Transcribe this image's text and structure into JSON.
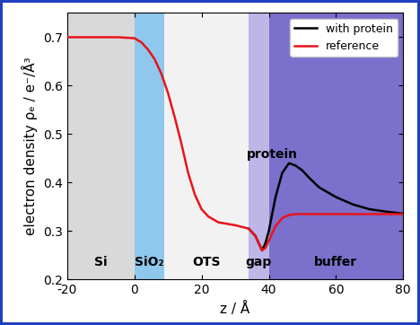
{
  "chart_data": {
    "type": "line",
    "xlabel": "z / Å",
    "ylabel": "electron density ρₑ / e⁻/Å³",
    "x": [
      -20,
      -10,
      -5,
      0,
      2,
      4,
      6,
      8,
      10,
      12,
      14,
      16,
      18,
      20,
      22,
      25,
      30,
      34,
      36,
      37,
      38,
      39,
      40,
      42,
      44,
      46,
      48,
      50,
      52,
      55,
      60,
      65,
      70,
      75,
      80
    ],
    "series": [
      {
        "name": "with protein",
        "color": "#000000",
        "values": [
          null,
          null,
          null,
          null,
          null,
          null,
          null,
          null,
          null,
          null,
          null,
          null,
          null,
          null,
          null,
          null,
          null,
          0.305,
          0.29,
          0.275,
          0.26,
          0.275,
          0.3,
          0.37,
          0.42,
          0.44,
          0.435,
          0.425,
          0.41,
          0.39,
          0.37,
          0.355,
          0.345,
          0.34,
          0.336
        ]
      },
      {
        "name": "reference",
        "color": "#e8141c",
        "values": [
          0.7,
          0.7,
          0.7,
          0.698,
          0.69,
          0.675,
          0.655,
          0.625,
          0.585,
          0.535,
          0.48,
          0.42,
          0.375,
          0.345,
          0.33,
          0.318,
          0.312,
          0.305,
          0.29,
          0.275,
          0.26,
          0.265,
          0.28,
          0.31,
          0.327,
          0.333,
          0.335,
          0.335,
          0.335,
          0.335,
          0.335,
          0.335,
          0.335,
          0.335,
          0.335
        ]
      }
    ],
    "regions": [
      {
        "label": "Si",
        "start": -20,
        "end": 0,
        "color": "#d9d9d9"
      },
      {
        "label": "SiO₂",
        "start": 0,
        "end": 9,
        "color": "#8fc8ec"
      },
      {
        "label": "OTS",
        "start": 9,
        "end": 34,
        "color": "#f2f2f2"
      },
      {
        "label": "gap",
        "start": 34,
        "end": 40,
        "color": "#bdb6e6"
      },
      {
        "label": "buffer",
        "start": 40,
        "end": 80,
        "color": "#7b70cc"
      }
    ],
    "annotations": [
      "protein"
    ],
    "xlim": [
      -20,
      80
    ],
    "ylim": [
      0.2,
      0.75
    ],
    "xticks": [
      -20,
      0,
      20,
      40,
      60,
      80
    ],
    "yticks": [
      0.2,
      0.3,
      0.4,
      0.5,
      0.6,
      0.7
    ],
    "legend": "upper right"
  }
}
